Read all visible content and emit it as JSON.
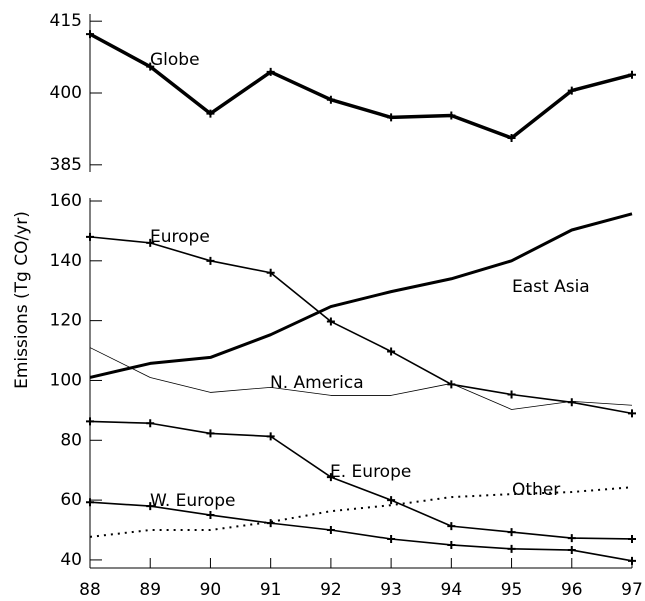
{
  "chart_data": [
    {
      "type": "line",
      "x": [
        88,
        89,
        90,
        91,
        92,
        93,
        94,
        95,
        96,
        97
      ],
      "xlim": [
        88,
        97
      ],
      "xticks": [
        88,
        89,
        90,
        91,
        92,
        93,
        94,
        95,
        96,
        97
      ],
      "ylim": [
        383.5,
        416.5
      ],
      "yticks": [
        385,
        400,
        415
      ],
      "series": [
        {
          "name": "Globe",
          "color": "#000000",
          "width": 3.5,
          "marker": "plus",
          "dashed": false,
          "values": [
            412.3,
            405.5,
            395.7,
            404.4,
            398.6,
            394.9,
            395.3,
            390.6,
            400.5,
            403.8
          ]
        }
      ]
    },
    {
      "type": "line",
      "ylabel": "Emissions (Tg CO/yr)",
      "x": [
        88,
        89,
        90,
        91,
        92,
        93,
        94,
        95,
        96,
        97
      ],
      "xlim": [
        88,
        97
      ],
      "xticks": [
        88,
        89,
        90,
        91,
        92,
        93,
        94,
        95,
        96,
        97
      ],
      "ylim": [
        37.3,
        161
      ],
      "yticks": [
        40,
        60,
        80,
        100,
        120,
        140,
        160
      ],
      "series": [
        {
          "name": "Europe",
          "color": "#000000",
          "width": 1.6,
          "marker": "plus",
          "dashed": false,
          "values": [
            148,
            146,
            140,
            136,
            119.7,
            109.7,
            98.7,
            95.3,
            92.7,
            89
          ]
        },
        {
          "name": "East Asia",
          "color": "#000000",
          "width": 3,
          "marker": "none",
          "dashed": false,
          "values": [
            101,
            105.7,
            107.7,
            115.3,
            124.7,
            129.7,
            134,
            140,
            150.3,
            155.7
          ]
        },
        {
          "name": "N. America",
          "color": "#000000",
          "width": 0.8,
          "marker": "none",
          "dashed": false,
          "values": [
            111,
            101,
            96,
            97.7,
            95,
            95,
            99,
            90.3,
            93,
            91.7
          ]
        },
        {
          "name": "E. Europe",
          "color": "#000000",
          "width": 1.6,
          "marker": "plus",
          "dashed": false,
          "values": [
            86.3,
            85.7,
            82.3,
            81.3,
            67.7,
            60,
            51.3,
            49.3,
            47.3,
            47
          ]
        },
        {
          "name": "W. Europe",
          "color": "#000000",
          "width": 1.6,
          "marker": "plus",
          "dashed": false,
          "values": [
            59.3,
            58,
            55,
            52.3,
            50,
            47,
            45,
            43.7,
            43.3,
            39.7
          ]
        },
        {
          "name": "Other",
          "color": "#000000",
          "width": 2,
          "marker": "none",
          "dashed": true,
          "values": [
            47.7,
            50,
            50,
            52.7,
            56.3,
            58.3,
            61,
            62,
            62.7,
            64.3
          ]
        }
      ]
    }
  ]
}
